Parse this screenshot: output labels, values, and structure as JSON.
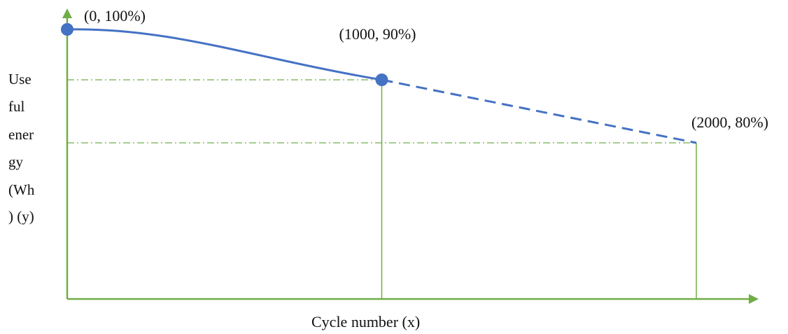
{
  "chart_data": {
    "type": "line",
    "title": "",
    "xlabel": "Cycle number (x)",
    "ylabel_lines": [
      "Use",
      "ful",
      "ener",
      "gy",
      "(Wh",
      ") (y)"
    ],
    "xlim": [
      0,
      2000
    ],
    "ylim": [
      0,
      100
    ],
    "series": [
      {
        "style": "solid",
        "x": [
          0,
          1000
        ],
        "y": [
          100,
          90
        ]
      },
      {
        "style": "dashed",
        "x": [
          1000,
          2000
        ],
        "y": [
          90,
          80
        ]
      }
    ],
    "points": [
      {
        "x": 0,
        "y": 100,
        "label": "(0, 100%)",
        "marker": true
      },
      {
        "x": 1000,
        "y": 90,
        "label": "(1000, 90%)",
        "marker": true
      },
      {
        "x": 2000,
        "y": 80,
        "label": "(2000, 80%)",
        "marker": false
      }
    ],
    "colors": {
      "line": "#4472c4",
      "axis": "#70ad47",
      "guide": "#70ad47"
    },
    "grid": false,
    "legend": "none"
  }
}
